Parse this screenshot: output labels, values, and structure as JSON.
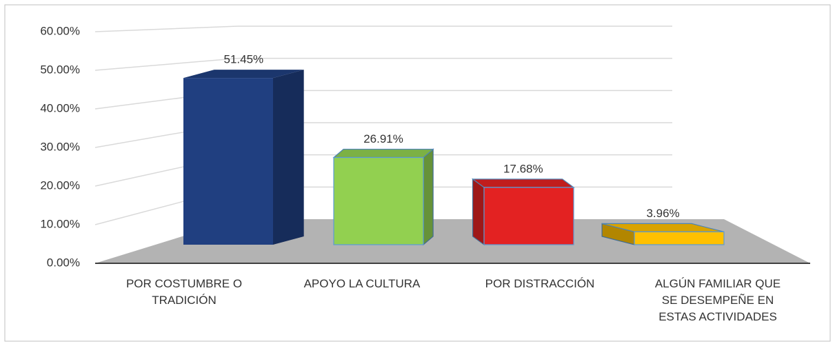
{
  "chart_data": {
    "type": "bar3d",
    "categories": [
      "POR COSTUMBRE O TRADICIÓN",
      "APOYO LA CULTURA",
      "POR DISTRACCIÓN",
      "ALGÚN FAMILIAR QUE SE DESEMPEÑE EN ESTAS ACTIVIDADES"
    ],
    "values": [
      51.45,
      26.91,
      17.68,
      3.96
    ],
    "value_labels": [
      "51.45%",
      "26.91%",
      "17.68%",
      "3.96%"
    ],
    "colors": [
      "#203f80",
      "#92d050",
      "#e32222",
      "#ffc000"
    ],
    "ylim": [
      0,
      60
    ],
    "yticks": [
      {
        "value": 0,
        "label": "0.00%"
      },
      {
        "value": 10,
        "label": "10.00%"
      },
      {
        "value": 20,
        "label": "20.00%"
      },
      {
        "value": 30,
        "label": "30.00%"
      },
      {
        "value": 40,
        "label": "40.00%"
      },
      {
        "value": 50,
        "label": "50.00%"
      },
      {
        "value": 60,
        "label": "60.00%"
      }
    ],
    "grid": true
  }
}
